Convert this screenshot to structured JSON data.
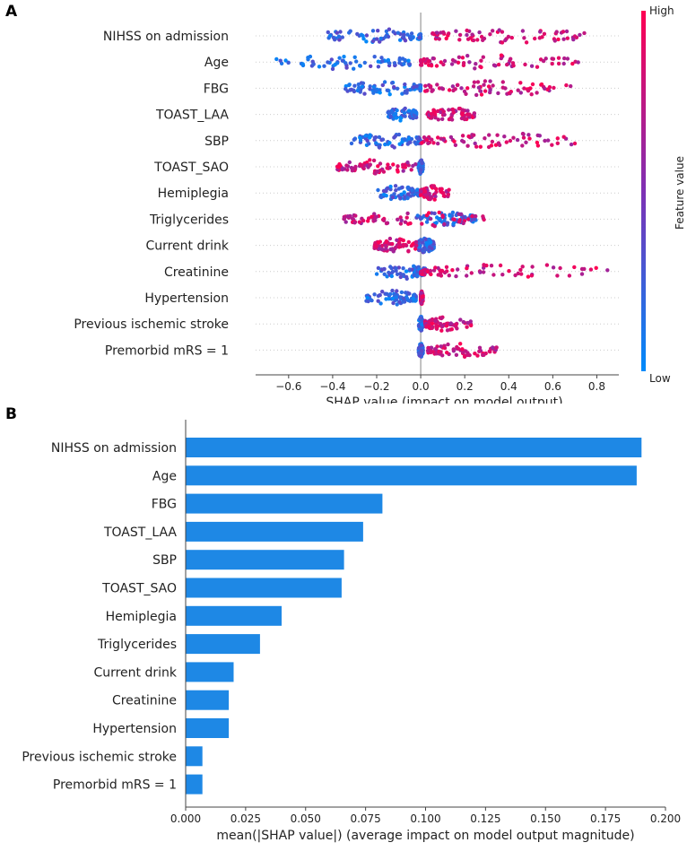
{
  "panels": {
    "a_letter": "A",
    "b_letter": "B"
  },
  "colors": {
    "low": "#008bfb",
    "high": "#ff0052",
    "bar": "#1e88e5",
    "zero_line": "#999999"
  },
  "chart_data": [
    {
      "type": "scatter",
      "subtype": "shap-beeswarm",
      "xlabel": "SHAP value (impact on model output)",
      "xlim": [
        -0.75,
        0.9
      ],
      "xticks": [
        -0.6,
        -0.4,
        -0.2,
        0.0,
        0.2,
        0.4,
        0.6,
        0.8
      ],
      "xtick_labels": [
        "−0.6",
        "−0.4",
        "−0.2",
        "0.0",
        "0.2",
        "0.4",
        "0.6",
        "0.8"
      ],
      "colorbar": {
        "label": "Feature value",
        "high_label": "High",
        "low_label": "Low"
      },
      "features": [
        {
          "name": "NIHSS on admission",
          "low_range": [
            -0.45,
            0.0
          ],
          "high_range": [
            0.05,
            0.75
          ],
          "min": -0.45,
          "max": 0.75
        },
        {
          "name": "Age",
          "low_range": [
            -0.66,
            -0.05
          ],
          "high_range": [
            0.0,
            0.72
          ],
          "min": -0.66,
          "max": 0.72
        },
        {
          "name": "FBG",
          "low_range": [
            -0.35,
            0.0
          ],
          "high_range": [
            0.02,
            0.7
          ],
          "min": -0.35,
          "max": 0.7
        },
        {
          "name": "TOAST_LAA",
          "low_range": [
            -0.15,
            -0.02
          ],
          "high_range": [
            0.03,
            0.25
          ],
          "min": -0.15,
          "max": 0.25
        },
        {
          "name": "SBP",
          "low_range": [
            -0.32,
            0.0
          ],
          "high_range": [
            0.0,
            0.75
          ],
          "min": -0.32,
          "max": 0.75
        },
        {
          "name": "TOAST_SAO",
          "low_range": [
            -0.01,
            0.01
          ],
          "high_range": [
            -0.38,
            -0.02
          ],
          "min": -0.38,
          "max": 0.01
        },
        {
          "name": "Hemiplegia",
          "low_range": [
            -0.2,
            -0.01
          ],
          "high_range": [
            0.0,
            0.13
          ],
          "min": -0.2,
          "max": 0.13
        },
        {
          "name": "Triglycerides",
          "low_range": [
            -0.03,
            0.25
          ],
          "high_range": [
            -0.35,
            0.3
          ],
          "min": -0.35,
          "max": 0.3
        },
        {
          "name": "Current drink",
          "low_range": [
            -0.02,
            0.06
          ],
          "high_range": [
            -0.21,
            0.0
          ],
          "min": -0.21,
          "max": 0.06
        },
        {
          "name": "Creatinine",
          "low_range": [
            -0.2,
            0.02
          ],
          "high_range": [
            0.0,
            0.85
          ],
          "min": -0.2,
          "max": 0.85
        },
        {
          "name": "Hypertension",
          "low_range": [
            -0.25,
            -0.02
          ],
          "high_range": [
            0.0,
            0.01
          ],
          "min": -0.25,
          "max": 0.01
        },
        {
          "name": "Previous ischemic stroke",
          "low_range": [
            -0.01,
            0.01
          ],
          "high_range": [
            0.02,
            0.23
          ],
          "min": -0.01,
          "max": 0.23
        },
        {
          "name": "Premorbid mRS = 1",
          "low_range": [
            -0.01,
            0.01
          ],
          "high_range": [
            0.03,
            0.35
          ],
          "min": -0.01,
          "max": 0.35
        }
      ]
    },
    {
      "type": "bar",
      "orientation": "horizontal",
      "xlabel": "mean(|SHAP value|) (average impact on model output magnitude)",
      "xlim": [
        0.0,
        0.2
      ],
      "xticks": [
        0.0,
        0.025,
        0.05,
        0.075,
        0.1,
        0.125,
        0.15,
        0.175,
        0.2
      ],
      "xtick_labels": [
        "0.000",
        "0.025",
        "0.050",
        "0.075",
        "0.100",
        "0.125",
        "0.150",
        "0.175",
        "0.200"
      ],
      "categories": [
        "NIHSS on admission",
        "Age",
        "FBG",
        "TOAST_LAA",
        "SBP",
        "TOAST_SAO",
        "Hemiplegia",
        "Triglycerides",
        "Current drink",
        "Creatinine",
        "Hypertension",
        "Previous ischemic stroke",
        "Premorbid mRS = 1"
      ],
      "values": [
        0.19,
        0.188,
        0.082,
        0.074,
        0.066,
        0.065,
        0.04,
        0.031,
        0.02,
        0.018,
        0.018,
        0.007,
        0.007
      ]
    }
  ]
}
